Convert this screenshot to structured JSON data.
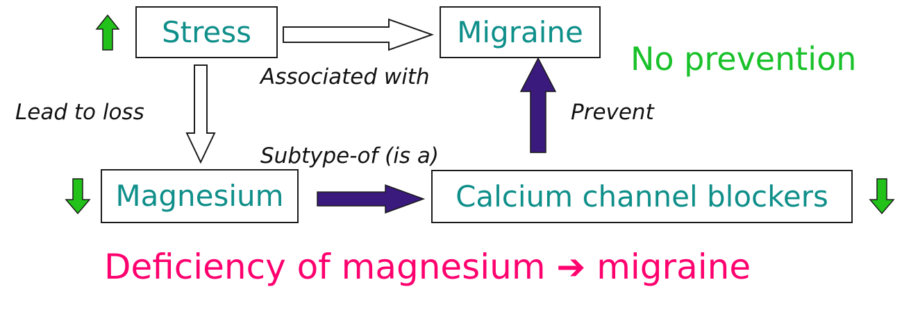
{
  "nodes": {
    "stress": "Stress",
    "migraine": "Migraine",
    "magnesium": "Magnesium",
    "ccb": "Calcium channel blockers"
  },
  "edges": {
    "associated_with": "Associated with",
    "lead_to_loss": "Lead to loss",
    "prevent": "Prevent",
    "subtype_of": "Subtype-of (is a)"
  },
  "notes": {
    "no_prevention": "No prevention",
    "conclusion": "Deficiency of magnesium ➔ migraine"
  },
  "indicators": {
    "stress": "up-arrow-icon",
    "magnesium": "down-arrow-icon",
    "ccb": "down-arrow-icon"
  },
  "colors": {
    "node_text": "#0f8f8a",
    "node_border": "#1a1a1a",
    "green_indicator": "#22c21a",
    "green_text": "#19c12a",
    "purple_arrow": "#3a1a7c",
    "conclusion_text": "#ff006e"
  }
}
